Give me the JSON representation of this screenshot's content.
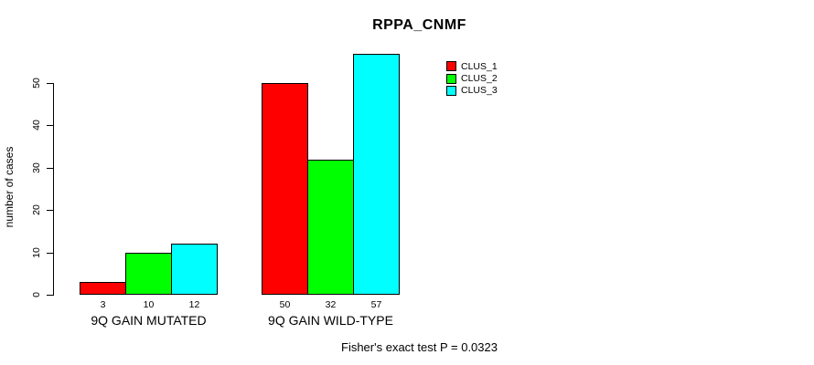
{
  "title": "RPPA_CNMF",
  "chart_data": {
    "type": "bar",
    "title": "RPPA_CNMF",
    "xlabel": "",
    "ylabel": "number of cases",
    "categories": [
      "9Q GAIN MUTATED",
      "9Q GAIN WILD-TYPE"
    ],
    "series": [
      {
        "name": "CLUS_1",
        "color": "#ff0000",
        "values": [
          3,
          50
        ]
      },
      {
        "name": "CLUS_2",
        "color": "#00ff00",
        "values": [
          10,
          32
        ]
      },
      {
        "name": "CLUS_3",
        "color": "#00ffff",
        "values": [
          12,
          57
        ]
      }
    ],
    "bar_value_labels": [
      [
        "3",
        "10",
        "12"
      ],
      [
        "50",
        "32",
        "57"
      ]
    ],
    "yticks": [
      0,
      10,
      20,
      30,
      40,
      50
    ],
    "ylim": [
      0,
      57
    ],
    "grid": false,
    "legend": {
      "position": "inside-top-right",
      "entries": [
        {
          "label": "CLUS_1",
          "color": "#ff0000"
        },
        {
          "label": "CLUS_2",
          "color": "#00ff00"
        },
        {
          "label": "CLUS_3",
          "color": "#00ffff"
        }
      ]
    },
    "annotation": "Fisher's exact test P = 0.0323"
  }
}
